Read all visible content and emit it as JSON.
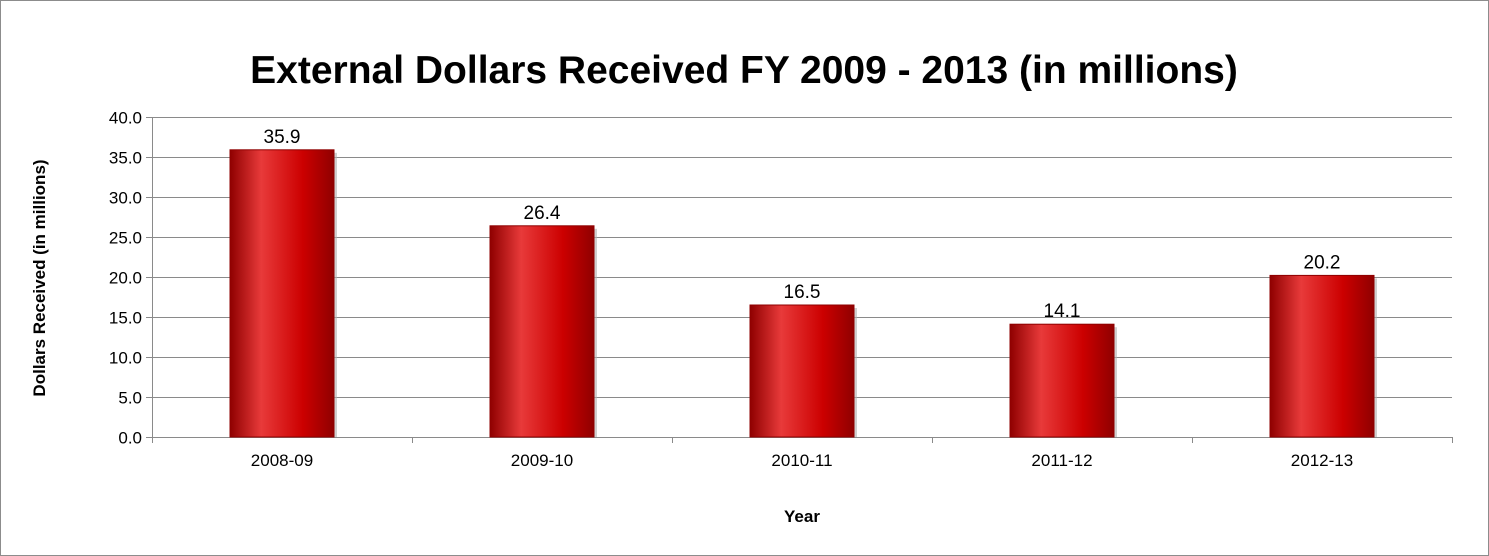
{
  "chart_data": {
    "type": "bar",
    "title": "External Dollars Received FY 2009 - 2013 (in millions)",
    "xlabel": "Year",
    "ylabel": "Dollars Received (in millions)",
    "categories": [
      "2008-09",
      "2009-10",
      "2010-11",
      "2011-12",
      "2012-13"
    ],
    "values": [
      35.9,
      26.4,
      16.5,
      14.1,
      20.2
    ],
    "value_labels": [
      "35.9",
      "26.4",
      "16.5",
      "14.1",
      "20.2"
    ],
    "ylim": [
      0,
      40
    ],
    "yticks": [
      "0.0",
      "5.0",
      "10.0",
      "15.0",
      "20.0",
      "25.0",
      "30.0",
      "35.0",
      "40.0"
    ],
    "ytick_values": [
      0,
      5,
      10,
      15,
      20,
      25,
      30,
      35,
      40
    ],
    "grid": true,
    "legend": false,
    "bar_color": "#cc0000",
    "bar_highlight_color": "#e83a3a",
    "bar_shadow_color": "#8f0000"
  }
}
